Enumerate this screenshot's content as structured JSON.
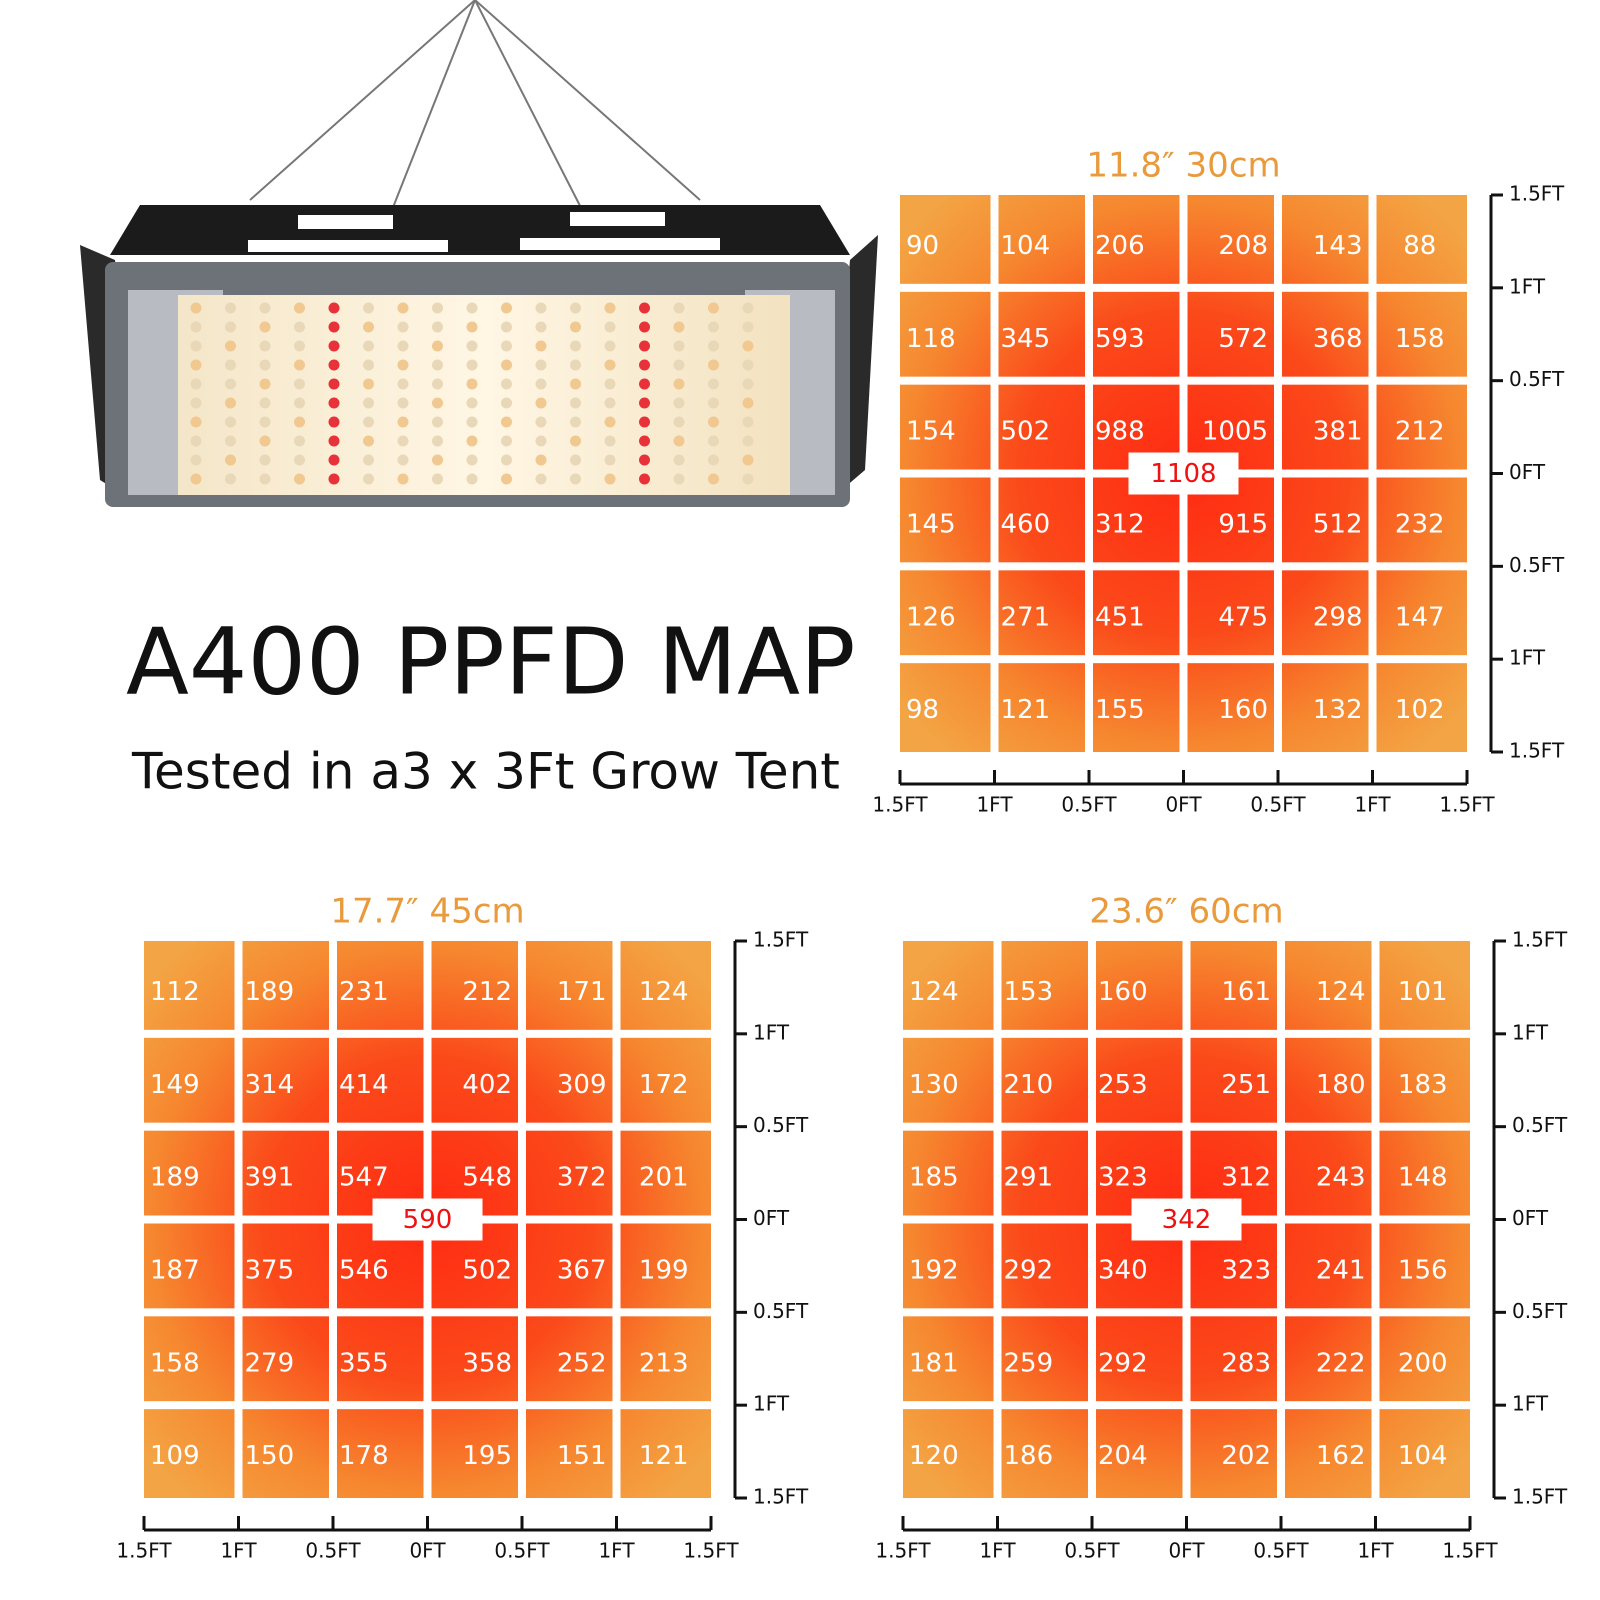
{
  "header": {
    "title": "A400 PPFD MAP",
    "subtitle": "Tested in a3 x 3Ft Grow Tent"
  },
  "axis_labels": [
    "1.5FT",
    "1FT",
    "0.5FT",
    "0FT",
    "0.5FT",
    "1FT",
    "1.5FT"
  ],
  "maps": [
    {
      "title": "11.8″  30cm",
      "center": 1108,
      "rows": [
        [
          90,
          104,
          206,
          208,
          143,
          88
        ],
        [
          118,
          345,
          593,
          572,
          368,
          158
        ],
        [
          154,
          502,
          988,
          1005,
          381,
          212
        ],
        [
          145,
          460,
          312,
          915,
          512,
          232
        ],
        [
          126,
          271,
          451,
          475,
          298,
          147
        ],
        [
          98,
          121,
          155,
          160,
          132,
          102
        ]
      ]
    },
    {
      "title": "17.7″  45cm",
      "center": 590,
      "rows": [
        [
          112,
          189,
          231,
          212,
          171,
          124
        ],
        [
          149,
          314,
          414,
          402,
          309,
          172
        ],
        [
          189,
          391,
          547,
          548,
          372,
          201
        ],
        [
          187,
          375,
          546,
          502,
          367,
          199
        ],
        [
          158,
          279,
          355,
          358,
          252,
          213
        ],
        [
          109,
          150,
          178,
          195,
          151,
          121
        ]
      ]
    },
    {
      "title": "23.6″  60cm",
      "center": 342,
      "rows": [
        [
          124,
          153,
          160,
          161,
          124,
          101
        ],
        [
          130,
          210,
          253,
          251,
          180,
          183
        ],
        [
          185,
          291,
          323,
          312,
          243,
          148
        ],
        [
          192,
          292,
          340,
          323,
          241,
          156
        ],
        [
          181,
          259,
          292,
          283,
          222,
          200
        ],
        [
          120,
          186,
          204,
          202,
          162,
          104
        ]
      ]
    }
  ]
}
